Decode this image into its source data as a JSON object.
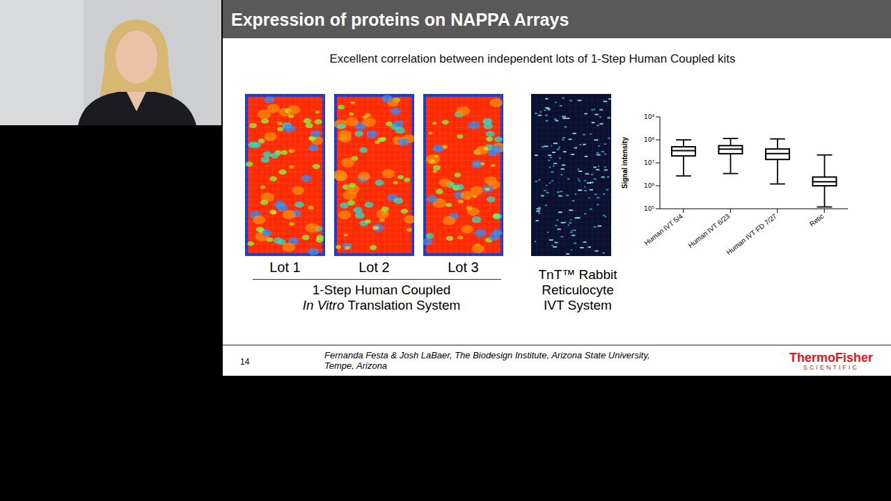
{
  "header": {
    "title": "Expression of proteins on NAPPA Arrays"
  },
  "subtitle": "Excellent correlation between independent lots of 1-Step Human Coupled kits",
  "arrays": {
    "lots": [
      "Lot 1",
      "Lot 2",
      "Lot 3"
    ],
    "group_label": {
      "line1": "1-Step Human Coupled",
      "line2_italic": "In Vitro",
      "line2_rest": "Translation System"
    },
    "reticulocyte_label": [
      "TnT™ Rabbit",
      "Reticulocyte",
      "IVT System"
    ]
  },
  "chart_data": {
    "type": "box",
    "categories": [
      "Human IVT 5/4",
      "Human IVT 6/23",
      "Human IVT FD 7/27",
      "Retic"
    ],
    "min": [
      2700000,
      3400000,
      1200000,
      120000
    ],
    "q1": [
      20000000,
      25000000,
      14000000,
      1000000
    ],
    "median": [
      34000000,
      40000000,
      25000000,
      1500000
    ],
    "q3": [
      50000000,
      56000000,
      40000000,
      2400000
    ],
    "max": [
      100000000,
      115000000,
      110000000,
      22000000
    ],
    "ylabel": "Signal intensity",
    "log": "y",
    "ylim": [
      100000,
      1000000000
    ],
    "yticks": [
      {
        "value": 100000,
        "label": "10⁵"
      },
      {
        "value": 1000000,
        "label": "10⁶"
      },
      {
        "value": 10000000,
        "label": "10⁷"
      },
      {
        "value": 100000000,
        "label": "10⁸"
      },
      {
        "value": 1000000000,
        "label": "10⁹"
      }
    ],
    "color": "#000000",
    "grid": false
  },
  "footer": {
    "page": "14",
    "credit": [
      "Fernanda Festa & Josh LaBaer, The Biodesign Institute, Arizona State University,",
      "Tempe, Arizona"
    ],
    "logo": {
      "name": "ThermoFisher",
      "sub": "SCIENTIFIC"
    }
  }
}
